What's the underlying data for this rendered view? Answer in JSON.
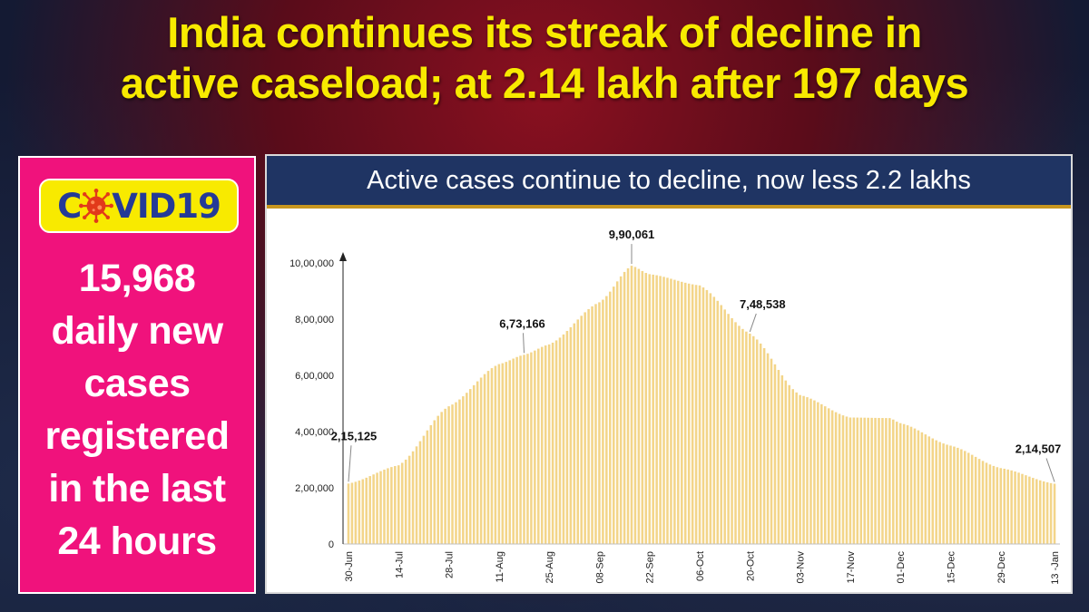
{
  "headline": {
    "line1": "India continues its streak of decline in",
    "line2": "active caseload; at 2.14 lakh after 197 days"
  },
  "sidebar": {
    "badge_left": "C",
    "badge_right": "VID19",
    "badge_icon": "virus-icon",
    "lines": [
      "15,968",
      "daily new",
      "cases",
      "registered",
      "in the last",
      "24 hours"
    ]
  },
  "colors": {
    "headline": "#f8ea00",
    "sidebar_bg": "#f0127c",
    "badge_bg": "#f8ea00",
    "badge_text": "#243a97",
    "title_bar": "#1f3463",
    "bar": "#f3d589"
  },
  "chart_data": {
    "type": "bar",
    "title": "Active cases continue to decline, now less 2.2 lakhs",
    "xlabel": "",
    "ylabel": "",
    "ylim": [
      0,
      1000000
    ],
    "yticks": [
      0,
      200000,
      400000,
      600000,
      800000,
      1000000
    ],
    "ytick_labels": [
      "0",
      "2,00,000",
      "4,00,000",
      "6,00,000",
      "8,00,000",
      "10,00,000"
    ],
    "xtick_labels": [
      "30-Jun",
      "14-Jul",
      "28-Jul",
      "11-Aug",
      "25-Aug",
      "08-Sep",
      "22-Sep",
      "06-Oct",
      "20-Oct",
      "03-Nov",
      "17-Nov",
      "01-Dec",
      "15-Dec",
      "29-Dec",
      "13 -Jan"
    ],
    "anchor_dates": [
      "30-Jun",
      "14-Jul",
      "28-Jul",
      "11-Aug",
      "18-Aug",
      "25-Aug",
      "08-Sep",
      "17-Sep",
      "22-Sep",
      "06-Oct",
      "20-Oct",
      "03-Nov",
      "17-Nov",
      "28-Nov",
      "01-Dec",
      "15-Dec",
      "29-Dec",
      "13-Jan"
    ],
    "anchor_values": [
      215125,
      280000,
      490000,
      640000,
      673166,
      710000,
      860000,
      990061,
      960000,
      920000,
      748538,
      530000,
      450000,
      448000,
      430000,
      350000,
      270000,
      214507
    ],
    "data_labels": [
      {
        "date": "30-Jun",
        "text": "2,15,125"
      },
      {
        "date": "18-Aug",
        "text": "6,73,166"
      },
      {
        "date": "17-Sep",
        "text": "9,90,061"
      },
      {
        "date": "20-Oct",
        "text": "7,48,538"
      },
      {
        "date": "13-Jan",
        "text": "2,14,507"
      }
    ],
    "grid": false
  }
}
